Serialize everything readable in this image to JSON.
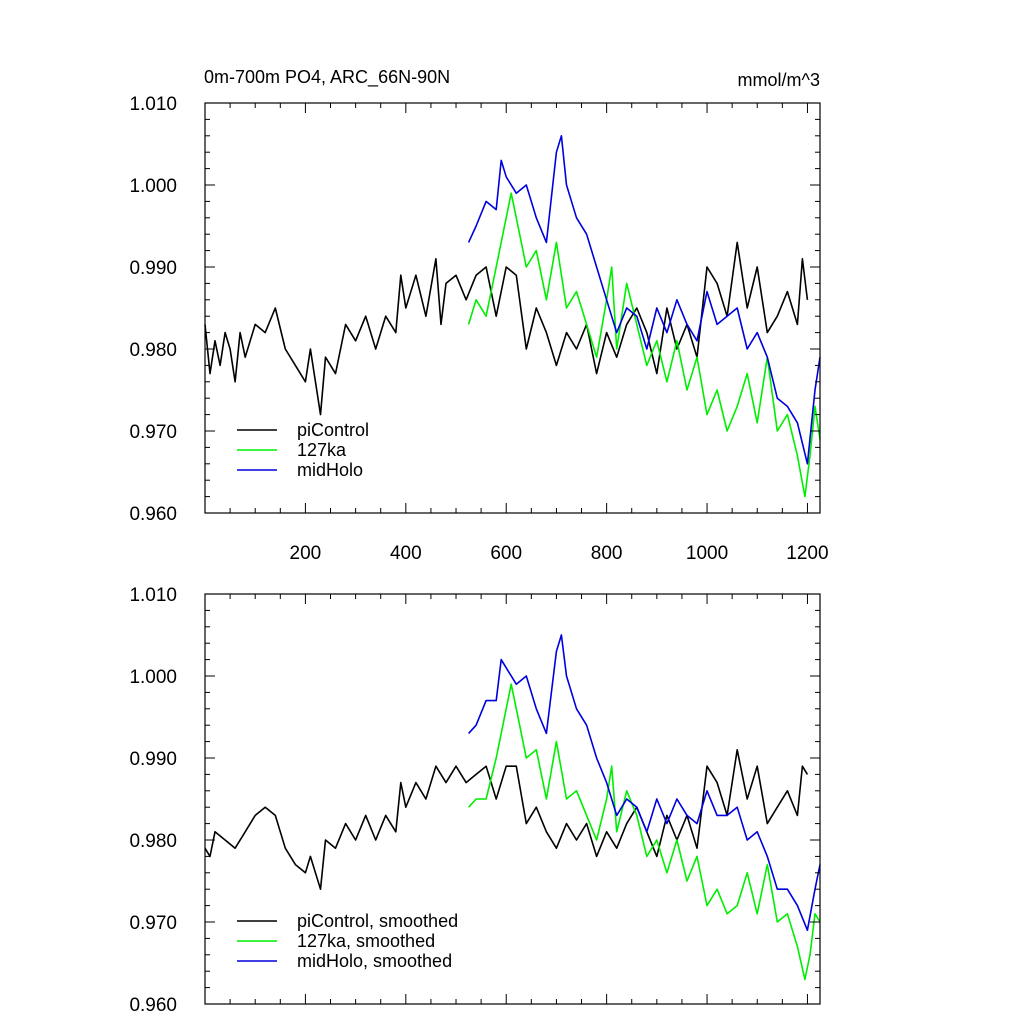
{
  "header": {
    "left_title": "0m-700m PO4, ARC_66N-90N",
    "right_title": "mmol/m^3"
  },
  "colors": {
    "piControl": "#000000",
    "127ka": "#00ee00",
    "midHolo": "#0000dd"
  },
  "chart_data": [
    {
      "type": "line",
      "title": "",
      "xlabel": "",
      "ylabel": "",
      "xlim": [
        0,
        1225
      ],
      "ylim": [
        0.96,
        1.01
      ],
      "x_ticks": [
        200,
        400,
        600,
        800,
        1000,
        1200
      ],
      "x_tick_labels": [
        "200",
        "400",
        "600",
        "800",
        "1000",
        "1200"
      ],
      "y_ticks": [
        0.96,
        0.97,
        0.98,
        0.99,
        1.0,
        1.01
      ],
      "y_tick_labels": [
        "0.960",
        "0.970",
        "0.980",
        "0.990",
        "1.000",
        "1.010"
      ],
      "grid": false,
      "legend_position": "bottom-left",
      "series": [
        {
          "name": "piControl",
          "color": "#000000",
          "x": [
            0,
            10,
            20,
            30,
            40,
            50,
            60,
            70,
            80,
            100,
            120,
            140,
            160,
            180,
            200,
            210,
            230,
            240,
            260,
            280,
            300,
            320,
            340,
            360,
            380,
            390,
            400,
            420,
            440,
            460,
            470,
            480,
            500,
            520,
            540,
            560,
            580,
            600,
            620,
            640,
            660,
            680,
            700,
            720,
            740,
            760,
            780,
            800,
            820,
            840,
            860,
            880,
            900,
            920,
            940,
            960,
            980,
            1000,
            1020,
            1040,
            1060,
            1080,
            1100,
            1120,
            1140,
            1160,
            1180,
            1190,
            1200
          ],
          "values": [
            0.983,
            0.977,
            0.981,
            0.978,
            0.982,
            0.98,
            0.976,
            0.982,
            0.979,
            0.983,
            0.982,
            0.985,
            0.98,
            0.978,
            0.976,
            0.98,
            0.972,
            0.979,
            0.977,
            0.983,
            0.981,
            0.984,
            0.98,
            0.984,
            0.982,
            0.989,
            0.985,
            0.989,
            0.984,
            0.991,
            0.983,
            0.988,
            0.989,
            0.986,
            0.989,
            0.99,
            0.984,
            0.99,
            0.989,
            0.98,
            0.985,
            0.982,
            0.978,
            0.982,
            0.98,
            0.983,
            0.977,
            0.982,
            0.979,
            0.983,
            0.985,
            0.982,
            0.977,
            0.985,
            0.98,
            0.983,
            0.979,
            0.99,
            0.988,
            0.984,
            0.993,
            0.985,
            0.99,
            0.982,
            0.984,
            0.987,
            0.983,
            0.991,
            0.986
          ]
        },
        {
          "name": "127ka",
          "color": "#00ee00",
          "x": [
            525,
            540,
            560,
            580,
            600,
            610,
            620,
            640,
            660,
            680,
            700,
            720,
            740,
            760,
            780,
            800,
            810,
            820,
            840,
            860,
            880,
            900,
            920,
            940,
            960,
            980,
            1000,
            1020,
            1040,
            1060,
            1080,
            1100,
            1120,
            1140,
            1160,
            1180,
            1195,
            1205,
            1215,
            1225
          ],
          "values": [
            0.983,
            0.986,
            0.984,
            0.99,
            0.996,
            0.999,
            0.996,
            0.99,
            0.992,
            0.986,
            0.993,
            0.985,
            0.987,
            0.983,
            0.979,
            0.986,
            0.99,
            0.98,
            0.988,
            0.983,
            0.978,
            0.981,
            0.976,
            0.981,
            0.975,
            0.979,
            0.972,
            0.975,
            0.97,
            0.973,
            0.977,
            0.971,
            0.979,
            0.97,
            0.972,
            0.967,
            0.962,
            0.967,
            0.973,
            0.969
          ]
        },
        {
          "name": "midHolo",
          "color": "#0000dd",
          "x": [
            525,
            540,
            560,
            580,
            590,
            600,
            620,
            640,
            660,
            680,
            700,
            710,
            720,
            740,
            760,
            780,
            800,
            820,
            840,
            860,
            880,
            900,
            920,
            940,
            960,
            980,
            1000,
            1020,
            1040,
            1060,
            1080,
            1100,
            1120,
            1140,
            1160,
            1180,
            1200,
            1215,
            1225
          ],
          "values": [
            0.993,
            0.995,
            0.998,
            0.997,
            1.003,
            1.001,
            0.999,
            1.0,
            0.996,
            0.993,
            1.004,
            1.006,
            1.0,
            0.996,
            0.994,
            0.99,
            0.986,
            0.982,
            0.985,
            0.984,
            0.98,
            0.985,
            0.982,
            0.986,
            0.983,
            0.981,
            0.987,
            0.983,
            0.984,
            0.985,
            0.98,
            0.982,
            0.979,
            0.974,
            0.973,
            0.971,
            0.966,
            0.975,
            0.979
          ]
        }
      ]
    },
    {
      "type": "line",
      "title": "",
      "xlabel": "",
      "ylabel": "",
      "xlim": [
        0,
        1225
      ],
      "ylim": [
        0.96,
        1.01
      ],
      "x_ticks": [
        200,
        400,
        600,
        800,
        1000,
        1200
      ],
      "x_tick_labels": [],
      "y_ticks": [
        0.96,
        0.97,
        0.98,
        0.99,
        1.0,
        1.01
      ],
      "y_tick_labels": [
        "0.960",
        "0.970",
        "0.980",
        "0.990",
        "1.000",
        "1.010"
      ],
      "grid": false,
      "legend_position": "bottom-left",
      "series": [
        {
          "name": "piControl, smoothed",
          "color": "#000000",
          "x": [
            0,
            10,
            20,
            40,
            60,
            80,
            100,
            120,
            140,
            160,
            180,
            200,
            210,
            230,
            240,
            260,
            280,
            300,
            320,
            340,
            360,
            380,
            390,
            400,
            420,
            440,
            460,
            480,
            500,
            520,
            540,
            560,
            580,
            600,
            620,
            640,
            660,
            680,
            700,
            720,
            740,
            760,
            780,
            800,
            820,
            840,
            860,
            880,
            900,
            920,
            940,
            960,
            980,
            1000,
            1020,
            1040,
            1060,
            1080,
            1100,
            1120,
            1140,
            1160,
            1180,
            1190,
            1200
          ],
          "values": [
            0.979,
            0.978,
            0.981,
            0.98,
            0.979,
            0.981,
            0.983,
            0.984,
            0.983,
            0.979,
            0.977,
            0.976,
            0.978,
            0.974,
            0.98,
            0.979,
            0.982,
            0.98,
            0.983,
            0.98,
            0.983,
            0.981,
            0.987,
            0.984,
            0.987,
            0.985,
            0.989,
            0.987,
            0.989,
            0.987,
            0.988,
            0.989,
            0.985,
            0.989,
            0.989,
            0.982,
            0.984,
            0.981,
            0.979,
            0.982,
            0.98,
            0.982,
            0.978,
            0.981,
            0.979,
            0.982,
            0.984,
            0.981,
            0.978,
            0.983,
            0.98,
            0.983,
            0.979,
            0.989,
            0.987,
            0.983,
            0.991,
            0.985,
            0.989,
            0.982,
            0.984,
            0.986,
            0.983,
            0.989,
            0.988
          ]
        },
        {
          "name": "127ka, smoothed",
          "color": "#00ee00",
          "x": [
            525,
            540,
            560,
            580,
            600,
            610,
            620,
            640,
            660,
            680,
            700,
            720,
            740,
            760,
            780,
            800,
            810,
            820,
            840,
            860,
            880,
            900,
            920,
            940,
            960,
            980,
            1000,
            1020,
            1040,
            1060,
            1080,
            1100,
            1120,
            1140,
            1160,
            1180,
            1195,
            1205,
            1215,
            1225
          ],
          "values": [
            0.984,
            0.985,
            0.985,
            0.99,
            0.996,
            0.999,
            0.996,
            0.99,
            0.991,
            0.985,
            0.992,
            0.985,
            0.986,
            0.983,
            0.98,
            0.985,
            0.989,
            0.981,
            0.986,
            0.983,
            0.978,
            0.98,
            0.976,
            0.98,
            0.975,
            0.978,
            0.972,
            0.974,
            0.971,
            0.972,
            0.976,
            0.971,
            0.977,
            0.97,
            0.971,
            0.967,
            0.963,
            0.966,
            0.971,
            0.97
          ]
        },
        {
          "name": "midHolo, smoothed",
          "color": "#0000dd",
          "x": [
            525,
            540,
            560,
            580,
            590,
            600,
            620,
            640,
            660,
            680,
            700,
            710,
            720,
            740,
            760,
            780,
            800,
            820,
            840,
            860,
            880,
            900,
            920,
            940,
            960,
            980,
            1000,
            1020,
            1040,
            1060,
            1080,
            1100,
            1120,
            1140,
            1160,
            1180,
            1200,
            1215,
            1225
          ],
          "values": [
            0.993,
            0.994,
            0.997,
            0.997,
            1.002,
            1.001,
            0.999,
            1.0,
            0.996,
            0.993,
            1.003,
            1.005,
            1.0,
            0.996,
            0.994,
            0.99,
            0.987,
            0.983,
            0.985,
            0.984,
            0.981,
            0.985,
            0.982,
            0.985,
            0.983,
            0.982,
            0.986,
            0.983,
            0.983,
            0.984,
            0.98,
            0.981,
            0.978,
            0.974,
            0.974,
            0.972,
            0.969,
            0.974,
            0.977
          ]
        }
      ]
    }
  ]
}
